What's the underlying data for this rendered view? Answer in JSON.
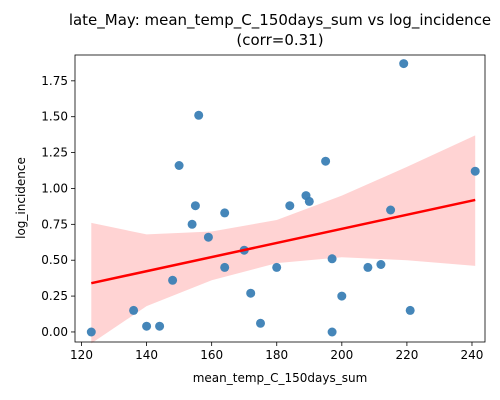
{
  "chart_data": {
    "type": "scatter",
    "title_line1": "late_May: mean_temp_C_150days_sum vs log_incidence",
    "title_line2": "(corr=0.31)",
    "xlabel": "mean_temp_C_150days_sum",
    "ylabel": "log_incidence",
    "xlim": [
      118,
      244
    ],
    "ylim": [
      -0.07,
      1.93
    ],
    "xticks": [
      120,
      140,
      160,
      180,
      200,
      220,
      240
    ],
    "yticks": [
      0.0,
      0.25,
      0.5,
      0.75,
      1.0,
      1.25,
      1.5,
      1.75
    ],
    "ytick_labels": [
      "0.00",
      "0.25",
      "0.50",
      "0.75",
      "1.00",
      "1.25",
      "1.50",
      "1.75"
    ],
    "point_color": "#3b7fb5",
    "line_color": "#ff0000",
    "band_color": "#ffc0c0",
    "x": [
      123,
      136,
      140,
      144,
      148,
      150,
      154,
      155,
      156,
      159,
      164,
      164,
      170,
      172,
      175,
      180,
      184,
      189,
      190,
      195,
      197,
      197,
      200,
      208,
      212,
      215,
      219,
      221,
      241
    ],
    "y": [
      0.0,
      0.15,
      0.04,
      0.04,
      0.36,
      1.16,
      0.75,
      0.88,
      1.51,
      0.66,
      0.83,
      0.45,
      0.57,
      0.27,
      0.06,
      0.45,
      0.88,
      0.95,
      0.91,
      1.19,
      0.51,
      0.0,
      0.25,
      0.45,
      0.47,
      0.85,
      1.87,
      0.15,
      1.12
    ],
    "regression": {
      "x": [
        123,
        241
      ],
      "y": [
        0.34,
        0.92
      ]
    },
    "ci_band": {
      "x": [
        123,
        140,
        160,
        180,
        200,
        220,
        241
      ],
      "lower": [
        -0.08,
        0.18,
        0.36,
        0.48,
        0.52,
        0.5,
        0.46
      ],
      "upper": [
        0.76,
        0.68,
        0.7,
        0.78,
        0.95,
        1.15,
        1.37
      ]
    }
  }
}
